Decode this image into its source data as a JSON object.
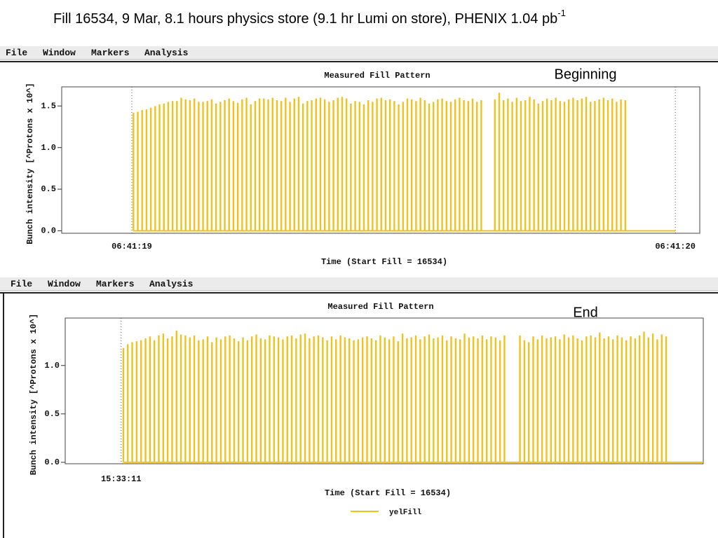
{
  "slide_title": "Fill 16534, 9 Mar, 8.1 hours physics store (9.1 hr Lumi on store), PHENIX 1.04 pb",
  "slide_title_superscript": "-1",
  "chart_data": [
    {
      "type": "bar",
      "menu": [
        "File",
        "Window",
        "Markers",
        "Analysis"
      ],
      "title": "Measured Fill Pattern",
      "annotation": "Beginning",
      "xlabel": "Time (Start Fill = 16534)",
      "ylabel": "Bunch intensity [^Protons x 10^]",
      "xlim": [
        24078.871,
        24080.045
      ],
      "xticks": [
        {
          "value": 24079,
          "label": "06:41:19"
        },
        {
          "value": 24080,
          "label": "06:41:20"
        }
      ],
      "ylim": [
        -0.03,
        1.73
      ],
      "yticks": [
        {
          "value": 0,
          "label": "0.0"
        },
        0.5,
        {
          "value": 1,
          "label": "1.0"
        },
        1.5
      ],
      "x": [
        24079.003,
        24079.011,
        24079.019,
        24079.027,
        24079.035,
        24079.043,
        24079.051,
        24079.059,
        24079.067,
        24079.075,
        24079.083,
        24079.091,
        24079.099,
        24079.107,
        24079.115,
        24079.123,
        24079.131,
        24079.139,
        24079.147,
        24079.155,
        24079.163,
        24079.171,
        24079.179,
        24079.187,
        24079.195,
        24079.203,
        24079.211,
        24079.219,
        24079.227,
        24079.235,
        24079.243,
        24079.251,
        24079.259,
        24079.267,
        24079.275,
        24079.283,
        24079.291,
        24079.299,
        24079.307,
        24079.315,
        24079.323,
        24079.331,
        24079.339,
        24079.347,
        24079.355,
        24079.363,
        24079.371,
        24079.379,
        24079.387,
        24079.395,
        24079.403,
        24079.411,
        24079.419,
        24079.427,
        24079.435,
        24079.443,
        24079.451,
        24079.459,
        24079.467,
        24079.475,
        24079.483,
        24079.491,
        24079.499,
        24079.507,
        24079.515,
        24079.523,
        24079.531,
        24079.539,
        24079.547,
        24079.555,
        24079.563,
        24079.571,
        24079.579,
        24079.587,
        24079.595,
        24079.603,
        24079.611,
        24079.619,
        24079.627,
        24079.635,
        24079.643,
        24079.668,
        24079.676,
        24079.684,
        24079.692,
        24079.7,
        24079.708,
        24079.716,
        24079.724,
        24079.732,
        24079.74,
        24079.748,
        24079.756,
        24079.764,
        24079.772,
        24079.78,
        24079.788,
        24079.796,
        24079.804,
        24079.812,
        24079.82,
        24079.828,
        24079.836,
        24079.844,
        24079.852,
        24079.86,
        24079.868,
        24079.876,
        24079.884,
        24079.892,
        24079.9,
        24079.908
      ],
      "series": [
        {
          "color": "#f0c21c",
          "values": [
            1.42,
            1.43,
            1.45,
            1.46,
            1.48,
            1.5,
            1.52,
            1.53,
            1.55,
            1.56,
            1.56,
            1.6,
            1.58,
            1.57,
            1.59,
            1.55,
            1.55,
            1.56,
            1.58,
            1.53,
            1.55,
            1.57,
            1.59,
            1.56,
            1.54,
            1.58,
            1.6,
            1.52,
            1.56,
            1.59,
            1.59,
            1.58,
            1.6,
            1.57,
            1.56,
            1.6,
            1.55,
            1.59,
            1.61,
            1.53,
            1.56,
            1.57,
            1.59,
            1.6,
            1.58,
            1.55,
            1.57,
            1.6,
            1.61,
            1.59,
            1.53,
            1.56,
            1.55,
            1.52,
            1.57,
            1.55,
            1.59,
            1.6,
            1.57,
            1.58,
            1.56,
            1.52,
            1.55,
            1.59,
            1.58,
            1.56,
            1.6,
            1.57,
            1.53,
            1.55,
            1.58,
            1.59,
            1.56,
            1.55,
            1.58,
            1.6,
            1.57,
            1.56,
            1.59,
            1.55,
            1.57,
            1.58,
            1.66,
            1.57,
            1.59,
            1.55,
            1.6,
            1.56,
            1.57,
            1.61,
            1.58,
            1.53,
            1.56,
            1.59,
            1.57,
            1.6,
            1.56,
            1.55,
            1.58,
            1.6,
            1.57,
            1.59,
            1.61,
            1.55,
            1.56,
            1.58,
            1.6,
            1.57,
            1.59,
            1.55,
            1.58,
            1.57
          ]
        }
      ]
    },
    {
      "type": "bar",
      "menu": [
        "File",
        "Window",
        "Markers",
        "Analysis"
      ],
      "title": "Measured Fill Pattern",
      "annotation": "End",
      "xlabel": "Time (Start Fill = 16534)",
      "ylabel": "Bunch intensity [^Protons x 10^]",
      "xlim": [
        55990.899,
        55992.051
      ],
      "xticks": [
        {
          "value": 55991,
          "label": "15:33:11"
        }
      ],
      "ylim": [
        -0.015,
        1.49
      ],
      "yticks": [
        {
          "value": 0,
          "label": "0.0"
        },
        0.5,
        {
          "value": 1,
          "label": "1.0"
        }
      ],
      "x": [
        55991.004,
        55991.012,
        55991.02,
        55991.028,
        55991.036,
        55991.044,
        55991.052,
        55991.06,
        55991.068,
        55991.076,
        55991.084,
        55991.092,
        55991.1,
        55991.108,
        55991.116,
        55991.124,
        55991.132,
        55991.14,
        55991.148,
        55991.156,
        55991.164,
        55991.172,
        55991.18,
        55991.188,
        55991.196,
        55991.204,
        55991.212,
        55991.22,
        55991.228,
        55991.236,
        55991.244,
        55991.252,
        55991.26,
        55991.268,
        55991.276,
        55991.284,
        55991.292,
        55991.3,
        55991.308,
        55991.316,
        55991.324,
        55991.332,
        55991.34,
        55991.348,
        55991.356,
        55991.364,
        55991.372,
        55991.38,
        55991.388,
        55991.396,
        55991.404,
        55991.412,
        55991.42,
        55991.428,
        55991.436,
        55991.444,
        55991.452,
        55991.46,
        55991.468,
        55991.476,
        55991.484,
        55991.492,
        55991.5,
        55991.508,
        55991.516,
        55991.524,
        55991.532,
        55991.54,
        55991.548,
        55991.556,
        55991.564,
        55991.572,
        55991.58,
        55991.588,
        55991.596,
        55991.604,
        55991.612,
        55991.62,
        55991.628,
        55991.636,
        55991.644,
        55991.652,
        55991.66,
        55991.668,
        55991.676,
        55991.684,
        55991.692,
        55991.72,
        55991.728,
        55991.736,
        55991.744,
        55991.752,
        55991.76,
        55991.768,
        55991.776,
        55991.784,
        55991.792,
        55991.8,
        55991.808,
        55991.816,
        55991.824,
        55991.832,
        55991.84,
        55991.848,
        55991.856,
        55991.864,
        55991.872,
        55991.88,
        55991.888,
        55991.896,
        55991.904,
        55991.912,
        55991.92,
        55991.928,
        55991.936,
        55991.944,
        55991.952,
        55991.96,
        55991.968,
        55991.976,
        55991.984
      ],
      "series": [
        {
          "name": "yelFill",
          "color": "#f0c21c",
          "values": [
            1.18,
            1.22,
            1.24,
            1.25,
            1.26,
            1.28,
            1.3,
            1.26,
            1.31,
            1.33,
            1.28,
            1.3,
            1.36,
            1.32,
            1.31,
            1.29,
            1.31,
            1.26,
            1.27,
            1.3,
            1.24,
            1.29,
            1.27,
            1.3,
            1.31,
            1.28,
            1.25,
            1.29,
            1.26,
            1.3,
            1.32,
            1.28,
            1.27,
            1.31,
            1.3,
            1.29,
            1.27,
            1.3,
            1.31,
            1.28,
            1.32,
            1.33,
            1.28,
            1.3,
            1.31,
            1.29,
            1.26,
            1.3,
            1.27,
            1.31,
            1.29,
            1.28,
            1.26,
            1.27,
            1.29,
            1.3,
            1.28,
            1.26,
            1.31,
            1.29,
            1.27,
            1.3,
            1.25,
            1.33,
            1.28,
            1.29,
            1.31,
            1.27,
            1.3,
            1.32,
            1.28,
            1.29,
            1.31,
            1.26,
            1.3,
            1.28,
            1.27,
            1.33,
            1.29,
            1.3,
            1.28,
            1.31,
            1.27,
            1.3,
            1.29,
            1.26,
            1.31,
            1.31,
            1.26,
            1.24,
            1.3,
            1.27,
            1.31,
            1.28,
            1.29,
            1.3,
            1.27,
            1.32,
            1.29,
            1.31,
            1.28,
            1.26,
            1.3,
            1.31,
            1.29,
            1.34,
            1.28,
            1.3,
            1.27,
            1.31,
            1.29,
            1.26,
            1.3,
            1.28,
            1.31,
            1.35,
            1.29,
            1.33,
            1.27,
            1.32,
            1.3
          ]
        }
      ]
    }
  ]
}
